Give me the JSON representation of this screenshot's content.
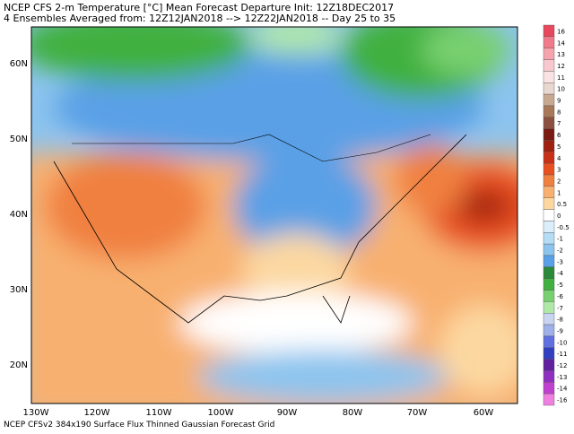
{
  "title": {
    "line1": "NCEP CFS 2-m Temperature [°C] Mean Forecast Departure Init: 12Z18DEC2017",
    "line2": "4 Ensembles Averaged from: 12Z12JAN2018 --> 12Z22JAN2018 -- Day 25 to 35"
  },
  "lat_labels": [
    "60N",
    "50N",
    "40N",
    "30N",
    "20N"
  ],
  "lon_labels": [
    "130W",
    "120W",
    "110W",
    "100W",
    "90W",
    "80W",
    "70W",
    "60W"
  ],
  "colorbar": {
    "labels": [
      "16",
      "14",
      "13",
      "12",
      "11",
      "10",
      "9",
      "8",
      "7",
      "6",
      "5",
      "4",
      "3",
      "2",
      "1",
      "0.5",
      "0",
      "-0.5",
      "-1",
      "-2",
      "-3",
      "-4",
      "-5",
      "-6",
      "-7",
      "-8",
      "-9",
      "-10",
      "-11",
      "-12",
      "-13",
      "-14",
      "-16"
    ],
    "colors": [
      "#e8475c",
      "#f07a8a",
      "#f5a3ad",
      "#f8c8ce",
      "#fbe2e4",
      "#e8d8d0",
      "#c8a890",
      "#a87858",
      "#8c5040",
      "#7a1a10",
      "#a02010",
      "#c83018",
      "#e85020",
      "#f08040",
      "#f8b070",
      "#fcd8a0",
      "#ffffff",
      "#dceefa",
      "#b4dcf4",
      "#8cc4ee",
      "#5aa0e6",
      "#2a8a3a",
      "#40b040",
      "#78d070",
      "#b0e8a8",
      "#c8d4f0",
      "#a0b0e8",
      "#6070e0",
      "#3040c0",
      "#6020a0",
      "#9030c0",
      "#c040d0",
      "#f080e0"
    ]
  },
  "footer": "NCEP CFSv2 384x190 Surface Flux Thinned Gaussian Forecast Grid"
}
